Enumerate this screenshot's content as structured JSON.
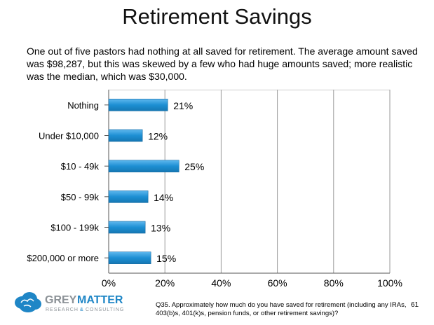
{
  "slide": {
    "title": "Retirement Savings",
    "intro": "One out of five pastors had nothing at all saved for retirement.  The average amount saved was $98,287, but this was skewed by a few who had huge amounts saved; more realistic was the median, which was $30,000.",
    "footnote": "Q35. Approximately how much do you have saved for retirement (including any IRAs, 403(b)s, 401(k)s, pension funds, or other retirement savings)?",
    "page_number": "61"
  },
  "logo": {
    "name_part1": "GREY",
    "name_part2": "MATTER",
    "tagline_part1": "RESEARCH",
    "tagline_part2": "CONSULTING",
    "ampersand": "&",
    "icon": "brain-cloud-icon"
  },
  "chart_data": {
    "type": "bar",
    "orientation": "horizontal",
    "categories": [
      "Nothing",
      "Under $10,000",
      "$10 - 49k",
      "$50 - 99k",
      "$100 - 199k",
      "$200,000 or more"
    ],
    "values": [
      21,
      12,
      25,
      14,
      13,
      15
    ],
    "data_labels": [
      "21%",
      "12%",
      "25%",
      "14%",
      "13%",
      "15%"
    ],
    "xlim": [
      0,
      100
    ],
    "xticks": [
      0,
      20,
      40,
      60,
      80,
      100
    ],
    "xtick_labels": [
      "0%",
      "20%",
      "40%",
      "60%",
      "80%",
      "100%"
    ],
    "grid": "vertical",
    "bar_color": "#1d8fd3",
    "legend": "none"
  }
}
